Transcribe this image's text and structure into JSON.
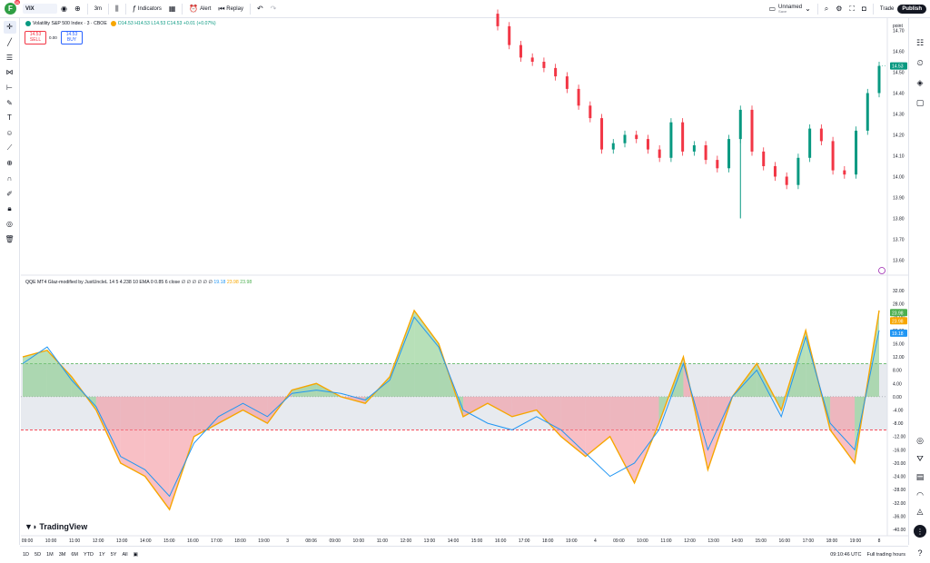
{
  "topbar": {
    "logo_letter": "F",
    "logo_badge": "11",
    "symbol": "VIX",
    "interval": "3m",
    "indicators_label": "Indicators",
    "alert_label": "Alert",
    "replay_label": "Replay",
    "layout_name": "Unnamed",
    "layout_status": "Save",
    "trade_label": "Trade",
    "publish_label": "Publish"
  },
  "legend": {
    "title": "Volatility S&P 500 Index · 3 · CBOE",
    "open": "O14.53",
    "high": "H14.53",
    "low": "L14.53",
    "close": "C14.53",
    "change": "+0.01 (+0.07%)"
  },
  "trade": {
    "sell_price": "14.53",
    "sell_label": "SELL",
    "spread": "0.00",
    "buy_price": "14.53",
    "buy_label": "BUY"
  },
  "indicator": {
    "name": "QQE MT4 Glaz-modified by JustUncleL",
    "params": "14 5 4.238 10 EMA 0 0.85 6 close",
    "flags": "∅ ∅ ∅ ∅ ∅ ∅",
    "val_blue": "19.18",
    "val_orange": "23.98",
    "val_green": "23.98"
  },
  "price_axis": {
    "unit_label": "point",
    "ticks": [
      "14.70",
      "14.60",
      "14.50",
      "14.40",
      "14.30",
      "14.20",
      "14.10",
      "14.00",
      "13.90",
      "13.80",
      "13.70",
      "13.60"
    ],
    "current": "14.53"
  },
  "osc_axis": {
    "ticks": [
      "32.00",
      "28.00",
      "24.00",
      "20.00",
      "16.00",
      "12.00",
      "8.00",
      "4.00",
      "0.00",
      "-4.00",
      "-8.00",
      "-12.00",
      "-16.00",
      "-20.00",
      "-24.00",
      "-28.00",
      "-32.00",
      "-36.00",
      "-40.00"
    ],
    "tags": [
      "23.98",
      "23.98",
      "19.18"
    ]
  },
  "time_axis": {
    "labels": [
      "09:00",
      "10:00",
      "11:00",
      "12:00",
      "13:00",
      "14:00",
      "15:00",
      "16:00",
      "17:00",
      "18:00",
      "19:00",
      "3",
      "08:06",
      "09:00",
      "10:00",
      "11:00",
      "12:00",
      "13:00",
      "14:00",
      "15:00",
      "16:00",
      "17:00",
      "18:00",
      "19:00",
      "4",
      "09:00",
      "10:00",
      "11:00",
      "12:00",
      "13:00",
      "14:00",
      "15:00",
      "16:00",
      "17:00",
      "18:00",
      "19:00",
      "8"
    ]
  },
  "bottombar": {
    "ranges": [
      "1D",
      "5D",
      "1M",
      "3M",
      "6M",
      "YTD",
      "1Y",
      "5Y",
      "All"
    ],
    "clock": "09:10:46 UTC",
    "session": "Full trading hours"
  },
  "watermark": "TradingView",
  "colors": {
    "up": "#089981",
    "down": "#f23645",
    "accent": "#2962ff",
    "qqe_fast": "#f7a600",
    "qqe_slow": "#2196f3",
    "hist_pos": "#7bc67e",
    "hist_neg": "#f28b96"
  },
  "chart_data": [
    {
      "type": "candlestick",
      "x": [
        "16:00",
        "16:30",
        "17:00",
        "17:30",
        "18:00",
        "18:30",
        "19:00",
        "19:30",
        "20:00",
        "4 09:00",
        "09:30",
        "10:00",
        "10:30",
        "11:00",
        "11:30",
        "12:00",
        "12:30",
        "13:00",
        "13:30",
        "14:00",
        "14:30",
        "15:00",
        "15:30",
        "16:00",
        "16:30",
        "17:00",
        "17:30",
        "18:00",
        "18:30",
        "19:00",
        "19:30",
        "20:00",
        "20:15",
        "8 08:00"
      ],
      "y": [
        14.72,
        14.63,
        14.57,
        14.55,
        14.52,
        14.48,
        14.42,
        14.34,
        14.28,
        14.13,
        14.16,
        14.2,
        14.18,
        14.13,
        14.09,
        14.26,
        14.12,
        14.15,
        14.08,
        14.04,
        14.18,
        14.32,
        14.12,
        14.05,
        14.0,
        13.96,
        14.09,
        14.23,
        14.17,
        14.03,
        14.01,
        14.22,
        14.4,
        14.53
      ],
      "ylim": [
        13.55,
        14.75
      ],
      "low_wick_min": 13.8
    },
    {
      "type": "area",
      "name": "QQE MT4",
      "x": [
        "09:00",
        "10:00",
        "11:00",
        "12:00",
        "13:00",
        "14:00",
        "15:00",
        "16:00",
        "17:00",
        "18:00",
        "19:00",
        "3",
        "09:00",
        "10:00",
        "11:00",
        "12:00",
        "13:00",
        "14:00",
        "15:00",
        "16:00",
        "17:00",
        "18:00",
        "19:00",
        "4",
        "09:00",
        "10:00",
        "11:00",
        "12:00",
        "13:00",
        "14:00",
        "15:00",
        "16:00",
        "17:00",
        "18:00",
        "19:00",
        "8"
      ],
      "series": [
        {
          "values": [
            12,
            14,
            6,
            -4,
            -20,
            -24,
            -34,
            -12,
            -8,
            -4,
            -8,
            2,
            4,
            0,
            -2,
            6,
            26,
            16,
            -6,
            -2,
            -6,
            -4,
            -12,
            -18,
            -12,
            -26,
            -8,
            12,
            -22,
            0,
            10,
            -4,
            20,
            -10,
            -20,
            26
          ]
        },
        {
          "values": [
            10,
            15,
            5,
            -3,
            -18,
            -22,
            -30,
            -14,
            -6,
            -2,
            -6,
            1,
            2,
            1,
            -1,
            5,
            24,
            15,
            -4,
            -8,
            -10,
            -6,
            -10,
            -17,
            -24,
            -20,
            -10,
            10,
            -16,
            0,
            8,
            -6,
            18,
            -8,
            -16,
            20
          ]
        }
      ],
      "bands": [
        10,
        -10
      ],
      "ylim": [
        -40,
        32
      ]
    }
  ]
}
